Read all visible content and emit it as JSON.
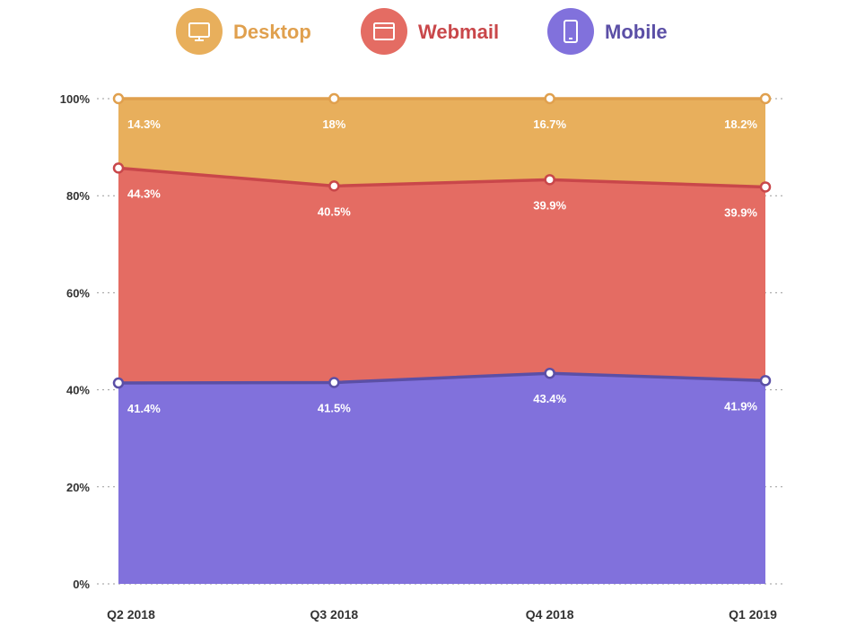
{
  "chart_data": {
    "type": "area",
    "stacked": true,
    "normalized": true,
    "categories": [
      "Q2 2018",
      "Q3 2018",
      "Q4 2018",
      "Q1 2019"
    ],
    "series": [
      {
        "name": "Mobile",
        "icon": "mobile-phone-icon",
        "color": "#8171DC",
        "line_color": "#5B4FA6",
        "values": [
          41.4,
          41.5,
          43.4,
          41.9
        ],
        "labels": [
          "41.4%",
          "41.5%",
          "43.4%",
          "41.9%"
        ]
      },
      {
        "name": "Webmail",
        "icon": "browser-window-icon",
        "color": "#E46C63",
        "line_color": "#C9474A",
        "values": [
          44.3,
          40.5,
          39.9,
          39.9
        ],
        "labels": [
          "44.3%",
          "40.5%",
          "39.9%",
          "39.9%"
        ]
      },
      {
        "name": "Desktop",
        "icon": "desktop-monitor-icon",
        "color": "#E8AF5C",
        "line_color": "#E0A04E",
        "values": [
          14.3,
          18,
          16.7,
          18.2
        ],
        "labels": [
          "14.3%",
          "18%",
          "16.7%",
          "18.2%"
        ]
      }
    ],
    "ylim": [
      0,
      100
    ],
    "yticks": [
      "0%",
      "20%",
      "40%",
      "60%",
      "80%",
      "100%"
    ],
    "ytick_values": [
      0,
      20,
      40,
      60,
      80,
      100
    ],
    "grid": "dotted-horizontal",
    "legend_position": "top"
  }
}
